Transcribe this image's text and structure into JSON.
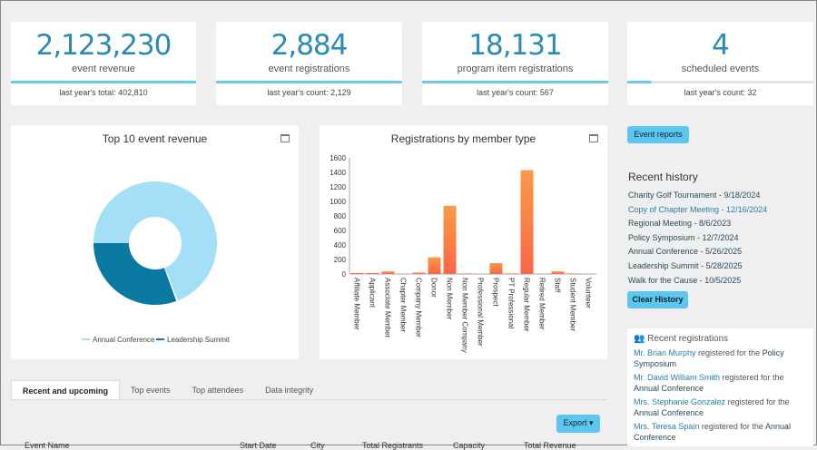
{
  "stats": [
    {
      "value": "2,123,230",
      "label": "event revenue",
      "sub": "last year's total: 402,810",
      "progress": 1.0
    },
    {
      "value": "2,884",
      "label": "event registrations",
      "sub": "last year's count: 2,129",
      "progress": 1.0
    },
    {
      "value": "18,131",
      "label": "program item registrations",
      "sub": "last year's count: 567",
      "progress": 1.0
    },
    {
      "value": "4",
      "label": "scheduled events",
      "sub": "last year's count: 32",
      "progress": 0.125
    }
  ],
  "chart_data": [
    {
      "type": "pie",
      "title": "Top 10 event revenue",
      "labels": [
        "Annual Conference",
        "Leadership Summit"
      ],
      "values": [
        69,
        31
      ],
      "colors": [
        "#a3dff7",
        "#0b7aa3"
      ]
    },
    {
      "type": "bar",
      "title": "Registrations by member type",
      "categories": [
        "Affiliate Member",
        "Applicant",
        "Associate Member",
        "Chapter Member",
        "Company Member",
        "Donor",
        "Non Member",
        "Non Member Company",
        "Professional Member",
        "Prospect",
        "PT Professional",
        "Regular Member",
        "Retired Member",
        "Staff",
        "Student Member",
        "Volunteer"
      ],
      "values": [
        15,
        15,
        35,
        0,
        20,
        230,
        940,
        8,
        0,
        150,
        8,
        1430,
        0,
        35,
        8,
        0
      ],
      "ylim": [
        0,
        1600
      ],
      "yticks": [
        "0",
        "200",
        "400",
        "600",
        "800",
        "1000",
        "1200",
        "1400",
        "1600"
      ]
    }
  ],
  "sidebar": {
    "event_reports": "Event reports",
    "history_title": "Recent history",
    "history": [
      "Charity Golf Tournament - 9/18/2024",
      "Copy of Chapter Meeting - 12/16/2024",
      "Regional Meeting - 8/6/2023",
      "Policy Symposium - 12/7/2024",
      "Annual Conference - 5/26/2025",
      "Leadership Summit - 5/28/2025",
      "Walk for the Cause - 10/5/2025"
    ],
    "clear_history": "Clear History",
    "registrations_title": "Recent registrations",
    "registrations": [
      {
        "name": "Mr. Brian Murphy",
        "mid": "registered for the",
        "event": "Policy Symposium"
      },
      {
        "name": "Mr. David William Smith",
        "mid": "registered for the",
        "event": "Annual Conference"
      },
      {
        "name": "Mrs. Stephanie Gonzalez",
        "mid": "registered for the",
        "event": "Annual Conference"
      },
      {
        "name": "Mrs. Teresa Spain",
        "mid": "registered for the",
        "event": "Annual Conference"
      }
    ]
  },
  "tabs": [
    "Recent and upcoming",
    "Top events",
    "Top attendees",
    "Data integrity"
  ],
  "export": "Export ▾",
  "table_headers": [
    "Event Name",
    "Start Date",
    "City",
    "Total Registrants",
    "Capacity",
    "Total Revenue"
  ]
}
